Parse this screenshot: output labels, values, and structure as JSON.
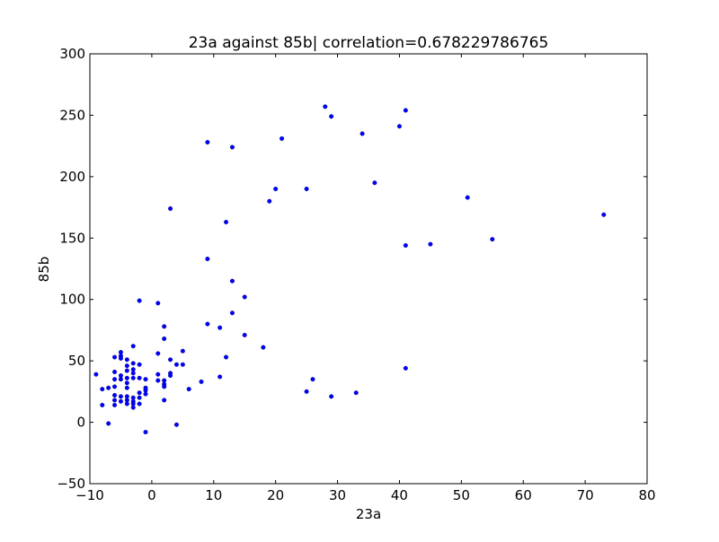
{
  "chart_data": {
    "type": "scatter",
    "title": "23a against 85b| correlation=0.678229786765",
    "xlabel": "23a",
    "ylabel": "85b",
    "xlim": [
      -10,
      80
    ],
    "ylim": [
      -50,
      300
    ],
    "x_ticks": [
      -10,
      0,
      10,
      20,
      30,
      40,
      50,
      60,
      70,
      80
    ],
    "y_ticks": [
      -50,
      0,
      50,
      100,
      150,
      200,
      250,
      300
    ],
    "x_tick_labels": [
      "−10",
      "0",
      "10",
      "20",
      "30",
      "40",
      "50",
      "60",
      "70",
      "80"
    ],
    "y_tick_labels": [
      "−50",
      "0",
      "50",
      "100",
      "150",
      "200",
      "250",
      "300"
    ],
    "grid": false,
    "legend": "none",
    "marker_color": "#0000ff",
    "points": [
      [
        -9,
        39
      ],
      [
        -8,
        27
      ],
      [
        -8,
        14
      ],
      [
        -7,
        28
      ],
      [
        -7,
        -1
      ],
      [
        -6,
        53
      ],
      [
        -6,
        41
      ],
      [
        -6,
        35
      ],
      [
        -6,
        29
      ],
      [
        -6,
        22
      ],
      [
        -6,
        18
      ],
      [
        -6,
        14
      ],
      [
        -5,
        57
      ],
      [
        -5,
        54
      ],
      [
        -5,
        52
      ],
      [
        -5,
        38
      ],
      [
        -5,
        35
      ],
      [
        -5,
        21
      ],
      [
        -5,
        17
      ],
      [
        -4,
        51
      ],
      [
        -4,
        46
      ],
      [
        -4,
        42
      ],
      [
        -4,
        36
      ],
      [
        -4,
        32
      ],
      [
        -4,
        28
      ],
      [
        -4,
        21
      ],
      [
        -4,
        18
      ],
      [
        -4,
        15
      ],
      [
        -3,
        62
      ],
      [
        -3,
        48
      ],
      [
        -3,
        43
      ],
      [
        -3,
        40
      ],
      [
        -3,
        36
      ],
      [
        -3,
        20
      ],
      [
        -3,
        17
      ],
      [
        -3,
        15
      ],
      [
        -3,
        12
      ],
      [
        -2,
        99
      ],
      [
        -2,
        47
      ],
      [
        -2,
        36
      ],
      [
        -2,
        24
      ],
      [
        -2,
        20
      ],
      [
        -2,
        15
      ],
      [
        -1,
        35
      ],
      [
        -1,
        28
      ],
      [
        -1,
        26
      ],
      [
        -1,
        23
      ],
      [
        -1,
        -8
      ],
      [
        1,
        97
      ],
      [
        1,
        56
      ],
      [
        1,
        39
      ],
      [
        1,
        34
      ],
      [
        2,
        78
      ],
      [
        2,
        68
      ],
      [
        2,
        34
      ],
      [
        2,
        31
      ],
      [
        2,
        29
      ],
      [
        2,
        18
      ],
      [
        3,
        174
      ],
      [
        3,
        51
      ],
      [
        3,
        40
      ],
      [
        3,
        38
      ],
      [
        4,
        47
      ],
      [
        4,
        -2
      ],
      [
        5,
        58
      ],
      [
        5,
        47
      ],
      [
        6,
        27
      ],
      [
        8,
        33
      ],
      [
        9,
        228
      ],
      [
        9,
        133
      ],
      [
        9,
        80
      ],
      [
        11,
        77
      ],
      [
        11,
        37
      ],
      [
        12,
        163
      ],
      [
        12,
        53
      ],
      [
        13,
        224
      ],
      [
        13,
        115
      ],
      [
        13,
        89
      ],
      [
        15,
        102
      ],
      [
        15,
        71
      ],
      [
        18,
        61
      ],
      [
        19,
        180
      ],
      [
        20,
        190
      ],
      [
        21,
        231
      ],
      [
        25,
        190
      ],
      [
        25,
        25
      ],
      [
        26,
        35
      ],
      [
        28,
        257
      ],
      [
        29,
        249
      ],
      [
        29,
        21
      ],
      [
        33,
        24
      ],
      [
        34,
        235
      ],
      [
        36,
        195
      ],
      [
        40,
        241
      ],
      [
        41,
        254
      ],
      [
        41,
        144
      ],
      [
        41,
        44
      ],
      [
        45,
        145
      ],
      [
        51,
        183
      ],
      [
        55,
        149
      ],
      [
        73,
        169
      ]
    ]
  }
}
